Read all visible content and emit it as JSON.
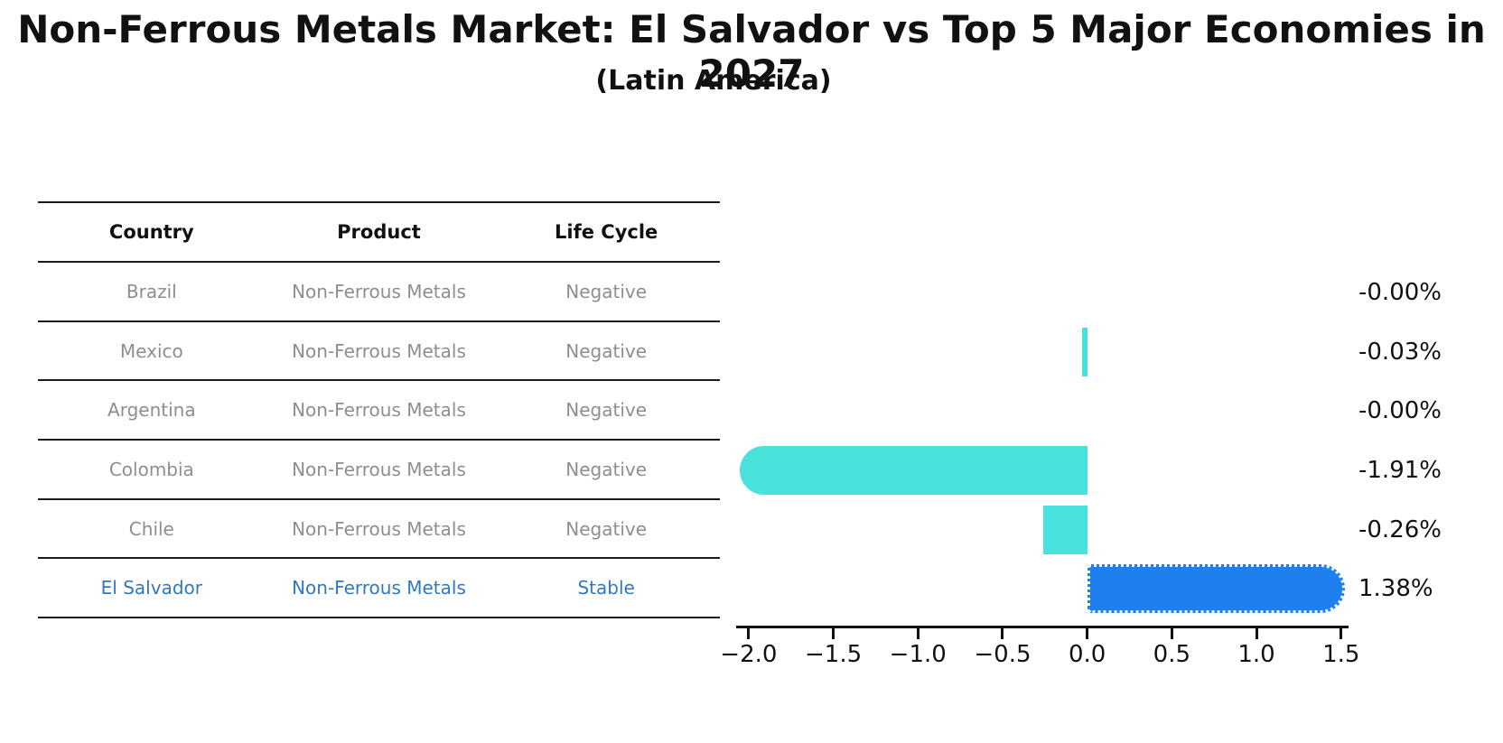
{
  "title": "Non-Ferrous Metals Market: El Salvador vs Top 5 Major Economies in 2027",
  "subtitle": "(Latin America)",
  "table": {
    "headers": [
      "Country",
      "Product",
      "Life Cycle"
    ],
    "rows": [
      {
        "country": "Brazil",
        "product": "Non-Ferrous Metals",
        "life_cycle": "Negative",
        "highlight": false
      },
      {
        "country": "Mexico",
        "product": "Non-Ferrous Metals",
        "life_cycle": "Negative",
        "highlight": false
      },
      {
        "country": "Argentina",
        "product": "Non-Ferrous Metals",
        "life_cycle": "Negative",
        "highlight": false
      },
      {
        "country": "Colombia",
        "product": "Non-Ferrous Metals",
        "life_cycle": "Negative",
        "highlight": false
      },
      {
        "country": "Chile",
        "product": "Non-Ferrous Metals",
        "life_cycle": "Negative",
        "highlight": false
      },
      {
        "country": "El Salvador",
        "product": "Non-Ferrous Metals",
        "life_cycle": "Stable",
        "highlight": true
      }
    ]
  },
  "chart_data": {
    "type": "bar",
    "orientation": "horizontal",
    "categories": [
      "Brazil",
      "Mexico",
      "Argentina",
      "Colombia",
      "Chile",
      "El Salvador"
    ],
    "values": [
      -0.0,
      -0.03,
      -0.0,
      -1.91,
      -0.26,
      1.38
    ],
    "value_labels": [
      "-0.00%",
      "-0.03%",
      "-0.00%",
      "-1.91%",
      "-0.26%",
      "1.38%"
    ],
    "xticks": [
      -2.0,
      -1.5,
      -1.0,
      -0.5,
      0.0,
      0.5,
      1.0,
      1.5
    ],
    "xtick_labels": [
      "−2.0",
      "−1.5",
      "−1.0",
      "−0.5",
      "0.0",
      "0.5",
      "1.0",
      "1.5"
    ],
    "xlim": [
      -2.074,
      1.544
    ],
    "grid": false,
    "legend": null,
    "bar_color": "#48e1dc",
    "highlight_color": "#1e80ee",
    "highlight_index": 5,
    "xlabel": "",
    "ylabel": ""
  },
  "colors": {
    "title_text": "#111111",
    "header_text": "#111111",
    "row_text": "#8e8e8e",
    "highlight_row_text": "#3178c2",
    "axis": "#111111",
    "table_line": "#1a1a1a"
  }
}
